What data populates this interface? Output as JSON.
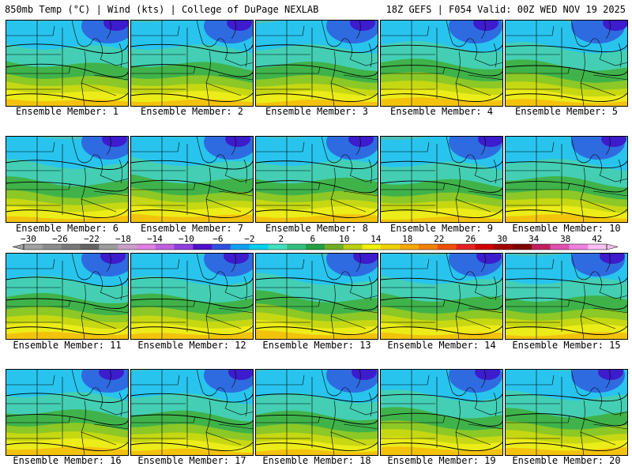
{
  "header": {
    "left": "850mb Temp (°C) | Wind (kts) | College of DuPage NEXLAB",
    "right": "18Z GEFS | F054 Valid: 00Z WED NOV 19 2025"
  },
  "colorbar": {
    "labels": [
      "−30",
      "−26",
      "−22",
      "−18",
      "−14",
      "−10",
      "−6",
      "−2",
      "2",
      "6",
      "10",
      "14",
      "18",
      "22",
      "26",
      "30",
      "34",
      "38",
      "42"
    ],
    "colors": [
      "#a0a0a0",
      "#8c8c8c",
      "#787878",
      "#646464",
      "#9c9c9c",
      "#c8a0c8",
      "#e080e0",
      "#c060e0",
      "#9040e0",
      "#5010c8",
      "#3050e0",
      "#10a0f0",
      "#00d0f0",
      "#40e0c0",
      "#30c080",
      "#20a040",
      "#70b020",
      "#b8d010",
      "#f0f000",
      "#f0d000",
      "#f8a800",
      "#f08000",
      "#f05000",
      "#e82020",
      "#d00000",
      "#a00000",
      "#800000",
      "#c02060",
      "#e050b0",
      "#f080e0",
      "#f8c0f0"
    ]
  },
  "panels": [
    {
      "caption": "Ensemble Member: 1"
    },
    {
      "caption": "Ensemble Member: 2"
    },
    {
      "caption": "Ensemble Member: 3"
    },
    {
      "caption": "Ensemble Member: 4"
    },
    {
      "caption": "Ensemble Member: 5"
    },
    {
      "caption": "Ensemble Member: 6"
    },
    {
      "caption": "Ensemble Member: 7"
    },
    {
      "caption": "Ensemble Member: 8"
    },
    {
      "caption": "Ensemble Member: 9"
    },
    {
      "caption": "Ensemble Member: 10"
    },
    {
      "caption": "Ensemble Member: 11"
    },
    {
      "caption": "Ensemble Member: 12"
    },
    {
      "caption": "Ensemble Member: 13"
    },
    {
      "caption": "Ensemble Member: 14"
    },
    {
      "caption": "Ensemble Member: 15"
    },
    {
      "caption": "Ensemble Member: 16"
    },
    {
      "caption": "Ensemble Member: 17"
    },
    {
      "caption": "Ensemble Member: 18"
    },
    {
      "caption": "Ensemble Member: 19"
    },
    {
      "caption": "Ensemble Member: 20"
    }
  ],
  "map_colors": {
    "cold_core": "#3c1ccc",
    "cold": "#2f6be0",
    "cool": "#28c4ee",
    "teal": "#44cfb4",
    "green": "#3fb34a",
    "light_green": "#8cc826",
    "yellow_green": "#c6d812",
    "yellow": "#ecec18",
    "orange": "#f3c30c",
    "border": "#000000"
  }
}
